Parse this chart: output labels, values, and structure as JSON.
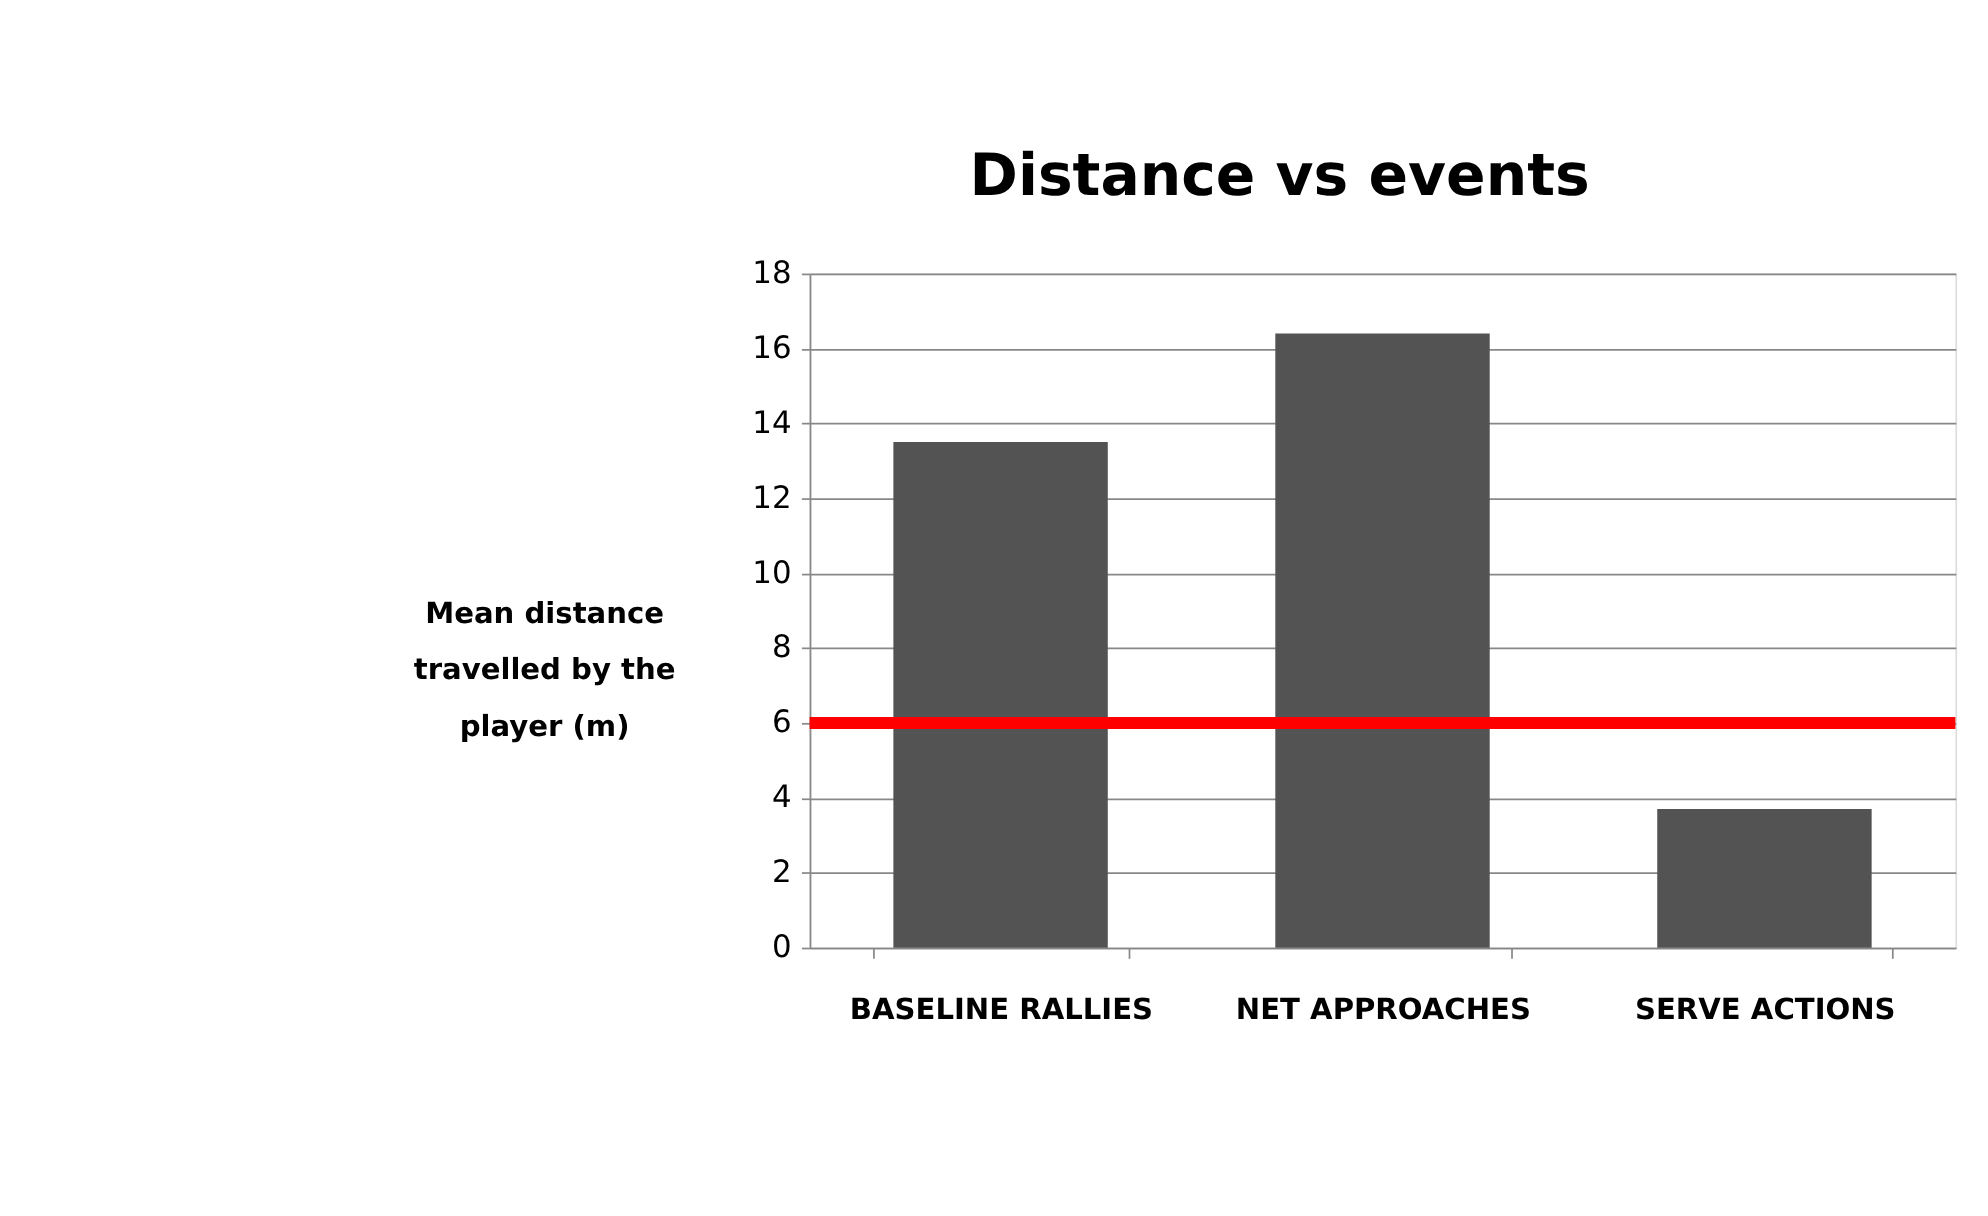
{
  "chart_data": {
    "type": "bar",
    "title": "Distance vs events",
    "ylabel": "Mean distance travelled by the player (m)",
    "categories": [
      "BASELINE RALLIES",
      "NET APPROACHES",
      "SERVE ACTIONS"
    ],
    "values": [
      13.5,
      16.4,
      3.7
    ],
    "color": "#535353",
    "ylim": [
      0,
      18
    ],
    "yticks": [
      0,
      2,
      4,
      6,
      8,
      10,
      12,
      14,
      16,
      18
    ],
    "grid": "y",
    "ref_lines": [
      {
        "axis": "y",
        "value": 6,
        "color": "#ff0000"
      }
    ]
  }
}
